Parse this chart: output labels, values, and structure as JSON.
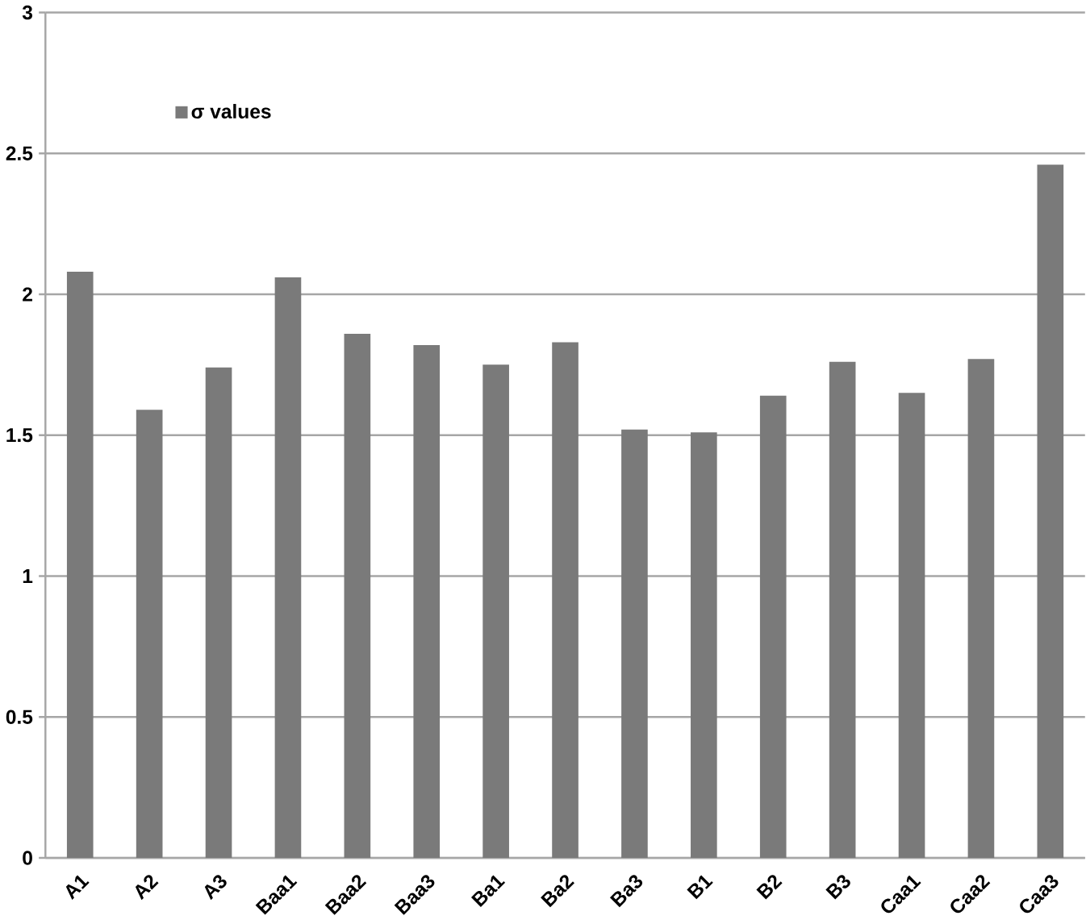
{
  "chart_data": {
    "type": "bar",
    "categories": [
      "A1",
      "A2",
      "A3",
      "Baa1",
      "Baa2",
      "Baa3",
      "Ba1",
      "Ba2",
      "Ba3",
      "B1",
      "B2",
      "B3",
      "Caa1",
      "Caa2",
      "Caa3"
    ],
    "series": [
      {
        "name": "σ values",
        "color": "#7a7a7a",
        "values": [
          2.08,
          1.59,
          1.74,
          2.06,
          1.86,
          1.82,
          1.75,
          1.83,
          1.52,
          1.51,
          1.64,
          1.76,
          1.65,
          1.77,
          2.46
        ]
      }
    ],
    "ylim": [
      0,
      3
    ],
    "yticks": [
      0,
      0.5,
      1,
      1.5,
      2,
      2.5,
      3
    ],
    "grid": "y",
    "legend": "top left"
  }
}
